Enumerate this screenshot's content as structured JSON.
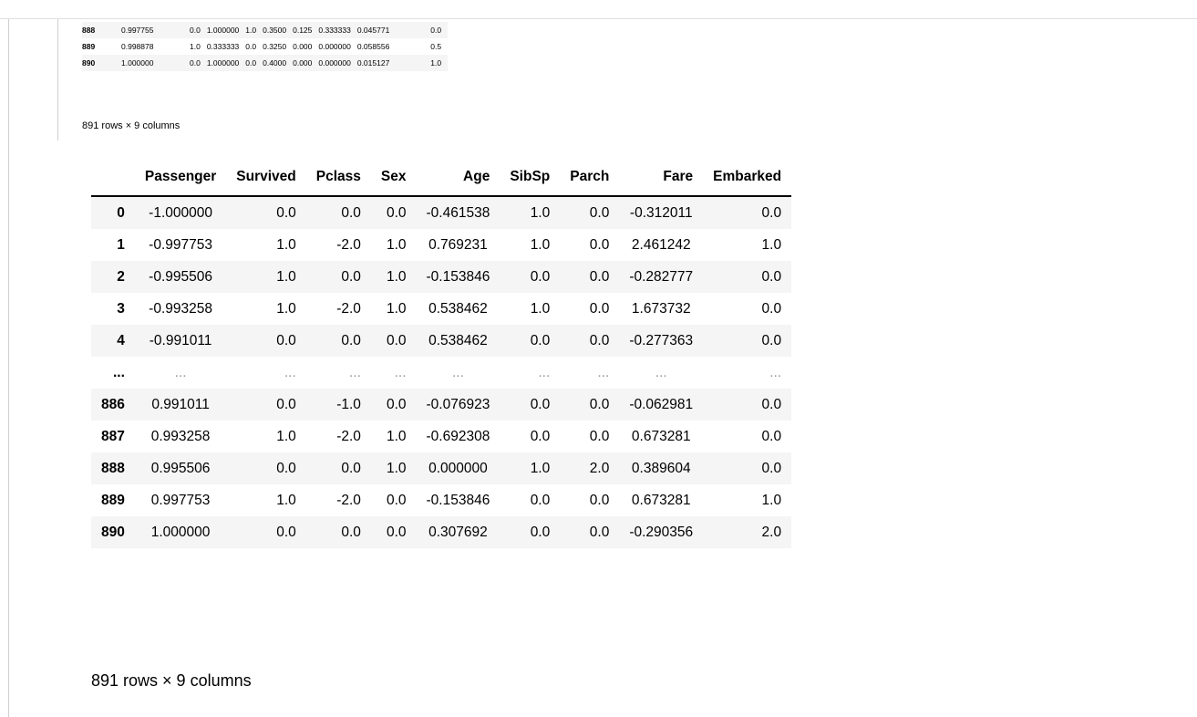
{
  "small_table": {
    "rows": [
      {
        "index": "888",
        "cells": [
          "0.997755",
          "0.0",
          "1.000000",
          "1.0",
          "0.3500",
          "0.125",
          "0.333333",
          "0.045771",
          "0.0"
        ]
      },
      {
        "index": "889",
        "cells": [
          "0.998878",
          "1.0",
          "0.333333",
          "0.0",
          "0.3250",
          "0.000",
          "0.000000",
          "0.058556",
          "0.5"
        ]
      },
      {
        "index": "890",
        "cells": [
          "1.000000",
          "0.0",
          "1.000000",
          "0.0",
          "0.4000",
          "0.000",
          "0.000000",
          "0.015127",
          "1.0"
        ]
      }
    ],
    "caption": "891 rows × 9 columns"
  },
  "big_table": {
    "columns": [
      "",
      "Passenger",
      "Survived",
      "Pclass",
      "Sex",
      "Age",
      "SibSp",
      "Parch",
      "Fare",
      "Embarked"
    ],
    "rows": [
      {
        "index": "0",
        "cells": [
          "-1.000000",
          "0.0",
          "0.0",
          "0.0",
          "-0.461538",
          "1.0",
          "0.0",
          "-0.312011",
          "0.0"
        ]
      },
      {
        "index": "1",
        "cells": [
          "-0.997753",
          "1.0",
          "-2.0",
          "1.0",
          "0.769231",
          "1.0",
          "0.0",
          "2.461242",
          "1.0"
        ]
      },
      {
        "index": "2",
        "cells": [
          "-0.995506",
          "1.0",
          "0.0",
          "1.0",
          "-0.153846",
          "0.0",
          "0.0",
          "-0.282777",
          "0.0"
        ]
      },
      {
        "index": "3",
        "cells": [
          "-0.993258",
          "1.0",
          "-2.0",
          "1.0",
          "0.538462",
          "1.0",
          "0.0",
          "1.673732",
          "0.0"
        ]
      },
      {
        "index": "4",
        "cells": [
          "-0.991011",
          "0.0",
          "0.0",
          "0.0",
          "0.538462",
          "0.0",
          "0.0",
          "-0.277363",
          "0.0"
        ]
      },
      {
        "index": "...",
        "cells": [
          "...",
          "...",
          "...",
          "...",
          "...",
          "...",
          "...",
          "...",
          "..."
        ]
      },
      {
        "index": "886",
        "cells": [
          "0.991011",
          "0.0",
          "-1.0",
          "0.0",
          "-0.076923",
          "0.0",
          "0.0",
          "-0.062981",
          "0.0"
        ]
      },
      {
        "index": "887",
        "cells": [
          "0.993258",
          "1.0",
          "-2.0",
          "1.0",
          "-0.692308",
          "0.0",
          "0.0",
          "0.673281",
          "0.0"
        ]
      },
      {
        "index": "888",
        "cells": [
          "0.995506",
          "0.0",
          "0.0",
          "1.0",
          "0.000000",
          "1.0",
          "2.0",
          "0.389604",
          "0.0"
        ]
      },
      {
        "index": "889",
        "cells": [
          "0.997753",
          "1.0",
          "-2.0",
          "0.0",
          "-0.153846",
          "0.0",
          "0.0",
          "0.673281",
          "1.0"
        ]
      },
      {
        "index": "890",
        "cells": [
          "1.000000",
          "0.0",
          "0.0",
          "0.0",
          "0.307692",
          "0.0",
          "0.0",
          "-0.290356",
          "2.0"
        ]
      }
    ],
    "caption": "891 rows × 9 columns"
  }
}
